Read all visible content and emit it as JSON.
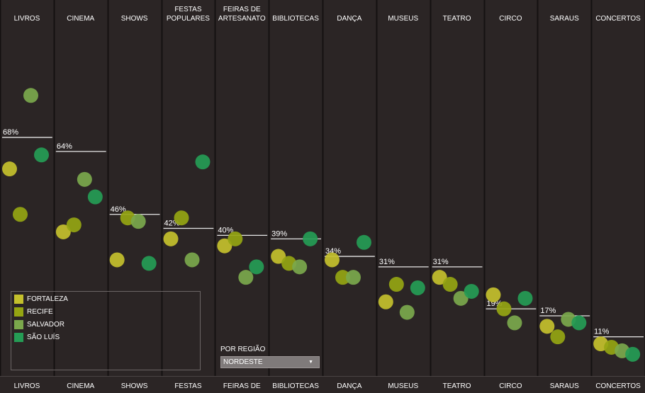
{
  "chart_data": {
    "type": "scatter",
    "ylim": [
      0,
      100
    ],
    "categories": [
      {
        "top_label": [
          "LIVROS"
        ],
        "bottom_label": "LIVROS",
        "average": 68,
        "average_label": "68%",
        "points": {
          "FORTALEZA": 59,
          "RECIFE": 46,
          "SALVADOR": 80,
          "SÃO LUÍS": 63
        }
      },
      {
        "top_label": [
          "CINEMA"
        ],
        "bottom_label": "CINEMA",
        "average": 64,
        "average_label": "64%",
        "points": {
          "FORTALEZA": 41,
          "RECIFE": 43,
          "SALVADOR": 56,
          "SÃO LUÍS": 51
        }
      },
      {
        "top_label": [
          "SHOWS"
        ],
        "bottom_label": "SHOWS",
        "average": 46,
        "average_label": "46%",
        "points": {
          "FORTALEZA": 33,
          "RECIFE": 45,
          "SALVADOR": 44,
          "SÃO LUÍS": 32
        }
      },
      {
        "top_label": [
          "FESTAS",
          "POPULARES"
        ],
        "bottom_label": "FESTAS",
        "average": 42,
        "average_label": "42%",
        "points": {
          "FORTALEZA": 39,
          "RECIFE": 45,
          "SALVADOR": 33,
          "SÃO LUÍS": 61
        }
      },
      {
        "top_label": [
          "FEIRAS DE",
          "ARTESANATO"
        ],
        "bottom_label": "FEIRAS DE",
        "average": 40,
        "average_label": "40%",
        "points": {
          "FORTALEZA": 37,
          "RECIFE": 39,
          "SALVADOR": 28,
          "SÃO LUÍS": 31
        }
      },
      {
        "top_label": [
          "BIBLIOTECAS"
        ],
        "bottom_label": "BIBLIOTECAS",
        "average": 39,
        "average_label": "39%",
        "points": {
          "FORTALEZA": 34,
          "RECIFE": 32,
          "SALVADOR": 31,
          "SÃO LUÍS": 39
        }
      },
      {
        "top_label": [
          "DANÇA"
        ],
        "bottom_label": "DANÇA",
        "average": 34,
        "average_label": "34%",
        "points": {
          "FORTALEZA": 33,
          "RECIFE": 28,
          "SALVADOR": 28,
          "SÃO LUÍS": 38
        }
      },
      {
        "top_label": [
          "MUSEUS"
        ],
        "bottom_label": "MUSEUS",
        "average": 31,
        "average_label": "31%",
        "points": {
          "FORTALEZA": 21,
          "RECIFE": 26,
          "SALVADOR": 18,
          "SÃO LUÍS": 25
        }
      },
      {
        "top_label": [
          "TEATRO"
        ],
        "bottom_label": "TEATRO",
        "average": 31,
        "average_label": "31%",
        "points": {
          "FORTALEZA": 28,
          "RECIFE": 26,
          "SALVADOR": 22,
          "SÃO LUÍS": 24
        }
      },
      {
        "top_label": [
          "CIRCO"
        ],
        "bottom_label": "CIRCO",
        "average": 19,
        "average_label": "19%",
        "points": {
          "FORTALEZA": 23,
          "RECIFE": 19,
          "SALVADOR": 15,
          "SÃO LUÍS": 22
        }
      },
      {
        "top_label": [
          "SARAUS"
        ],
        "bottom_label": "SARAUS",
        "average": 17,
        "average_label": "17%",
        "points": {
          "FORTALEZA": 14,
          "RECIFE": 11,
          "SALVADOR": 16,
          "SÃO LUÍS": 15
        }
      },
      {
        "top_label": [
          "CONCERTOS"
        ],
        "bottom_label": "CONCERTOS",
        "average": 11,
        "average_label": "11%",
        "points": {
          "FORTALEZA": 9,
          "RECIFE": 8,
          "SALVADOR": 7,
          "SÃO LUÍS": 6
        }
      }
    ],
    "series": [
      {
        "name": "FORTALEZA",
        "color": "#c4c02c"
      },
      {
        "name": "RECIFE",
        "color": "#95a512"
      },
      {
        "name": "SALVADOR",
        "color": "#7ba84c"
      },
      {
        "name": "SÃO LUÍS",
        "color": "#259c55"
      }
    ],
    "legend_position": "bottom-left",
    "grid": false
  },
  "legend": {
    "items": [
      {
        "label": "FORTALEZA",
        "color": "#c4c02c"
      },
      {
        "label": "RECIFE",
        "color": "#95a512"
      },
      {
        "label": "SALVADOR",
        "color": "#7ba84c"
      },
      {
        "label": "SÃO LUÍS",
        "color": "#259c55"
      }
    ]
  },
  "filter": {
    "label": "POR REGIÃO",
    "selected": "NORDESTE",
    "arrow_icon": "triangle-down-icon"
  },
  "colors": {
    "background": "#2b2525",
    "divider": "#141111",
    "average_line": "#e8e8e8"
  }
}
